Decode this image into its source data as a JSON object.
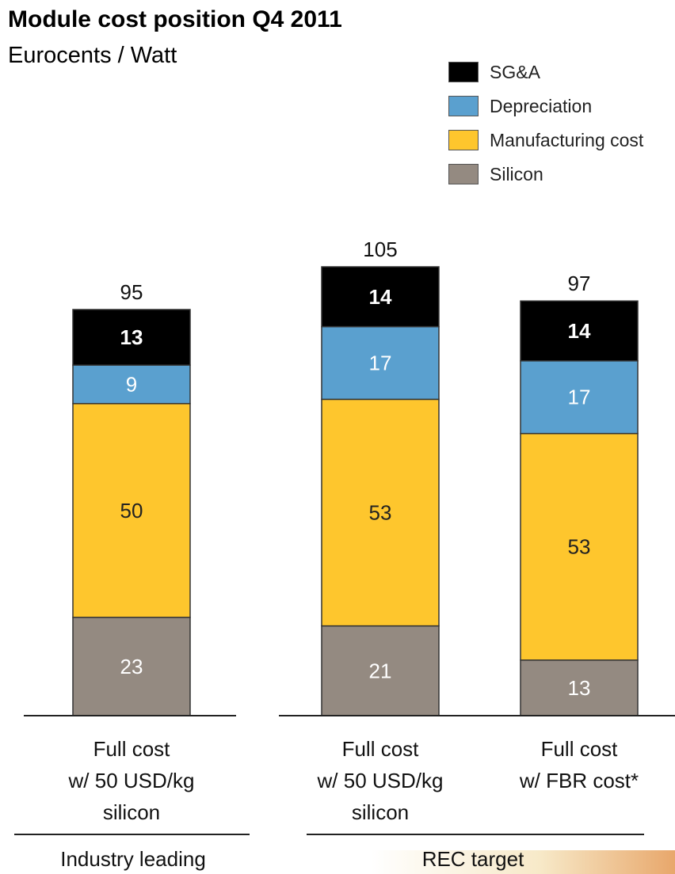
{
  "chart_data": {
    "type": "bar",
    "stacked": true,
    "title": "Module cost position Q4 2011",
    "subtitle": "Eurocents / Watt",
    "categories": [
      [
        "Full cost",
        "w/ 50 USD/kg",
        "silicon"
      ],
      [
        "Full cost",
        "w/ 50 USD/kg",
        "silicon"
      ],
      [
        "Full cost",
        "w/ FBR cost*"
      ]
    ],
    "groups": [
      {
        "label": "Industry leading",
        "categories": [
          0
        ]
      },
      {
        "label": "REC target",
        "categories": [
          1,
          2
        ]
      }
    ],
    "series": [
      {
        "name": "Silicon",
        "color": "#948a81",
        "label_color": "#ffffff",
        "values": [
          23,
          21,
          13
        ]
      },
      {
        "name": "Manufacturing cost",
        "color": "#fec62d",
        "label_color": "#222222",
        "values": [
          50,
          53,
          53
        ]
      },
      {
        "name": "Depreciation",
        "color": "#5aa0cf",
        "label_color": "#ffffff",
        "values": [
          9,
          17,
          17
        ]
      },
      {
        "name": "SG&A",
        "color": "#000000",
        "label_color": "#ffffff",
        "values": [
          13,
          14,
          14
        ]
      }
    ],
    "totals": [
      95,
      105,
      97
    ],
    "legend_order": [
      "SG&A",
      "Depreciation",
      "Manufacturing cost",
      "Silicon"
    ],
    "legend": "top-right",
    "grid": false
  }
}
